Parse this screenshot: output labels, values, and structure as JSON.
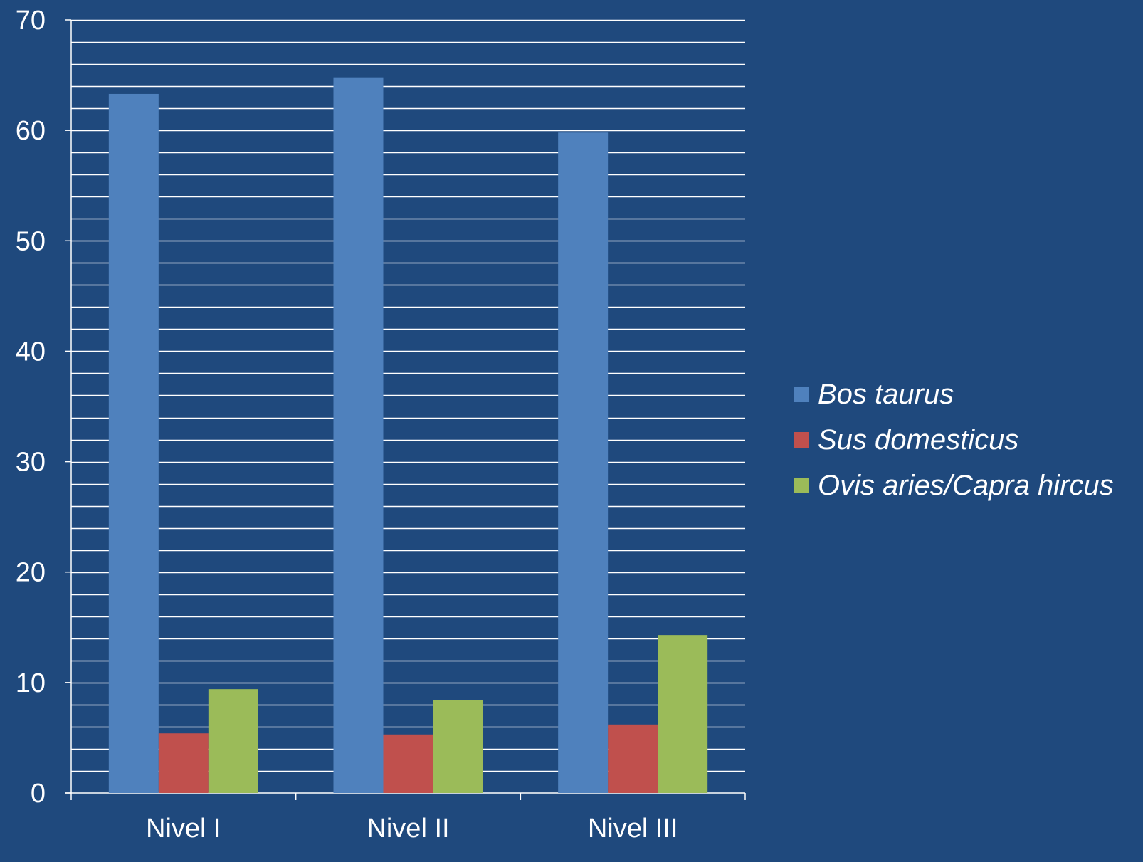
{
  "chart_data": {
    "type": "bar",
    "categories": [
      "Nivel I",
      "Nivel II",
      "Nivel III"
    ],
    "series": [
      {
        "name": "Bos taurus",
        "values": [
          63.3,
          64.8,
          59.8
        ],
        "color": "#4F81BD"
      },
      {
        "name": "Sus domesticus",
        "values": [
          5.4,
          5.3,
          6.2
        ],
        "color": "#C0504D"
      },
      {
        "name": "Ovis aries/Capra hircus",
        "values": [
          9.4,
          8.4,
          14.3
        ],
        "color": "#9BBB59"
      }
    ],
    "ylim": [
      0,
      70
    ],
    "yticks": [
      0,
      10,
      20,
      30,
      40,
      50,
      60,
      70
    ],
    "minor_gridline_step": 2,
    "grid": true,
    "legend_position": "right",
    "background_color": "#1F497D",
    "text_color": "#FFFFFF"
  }
}
